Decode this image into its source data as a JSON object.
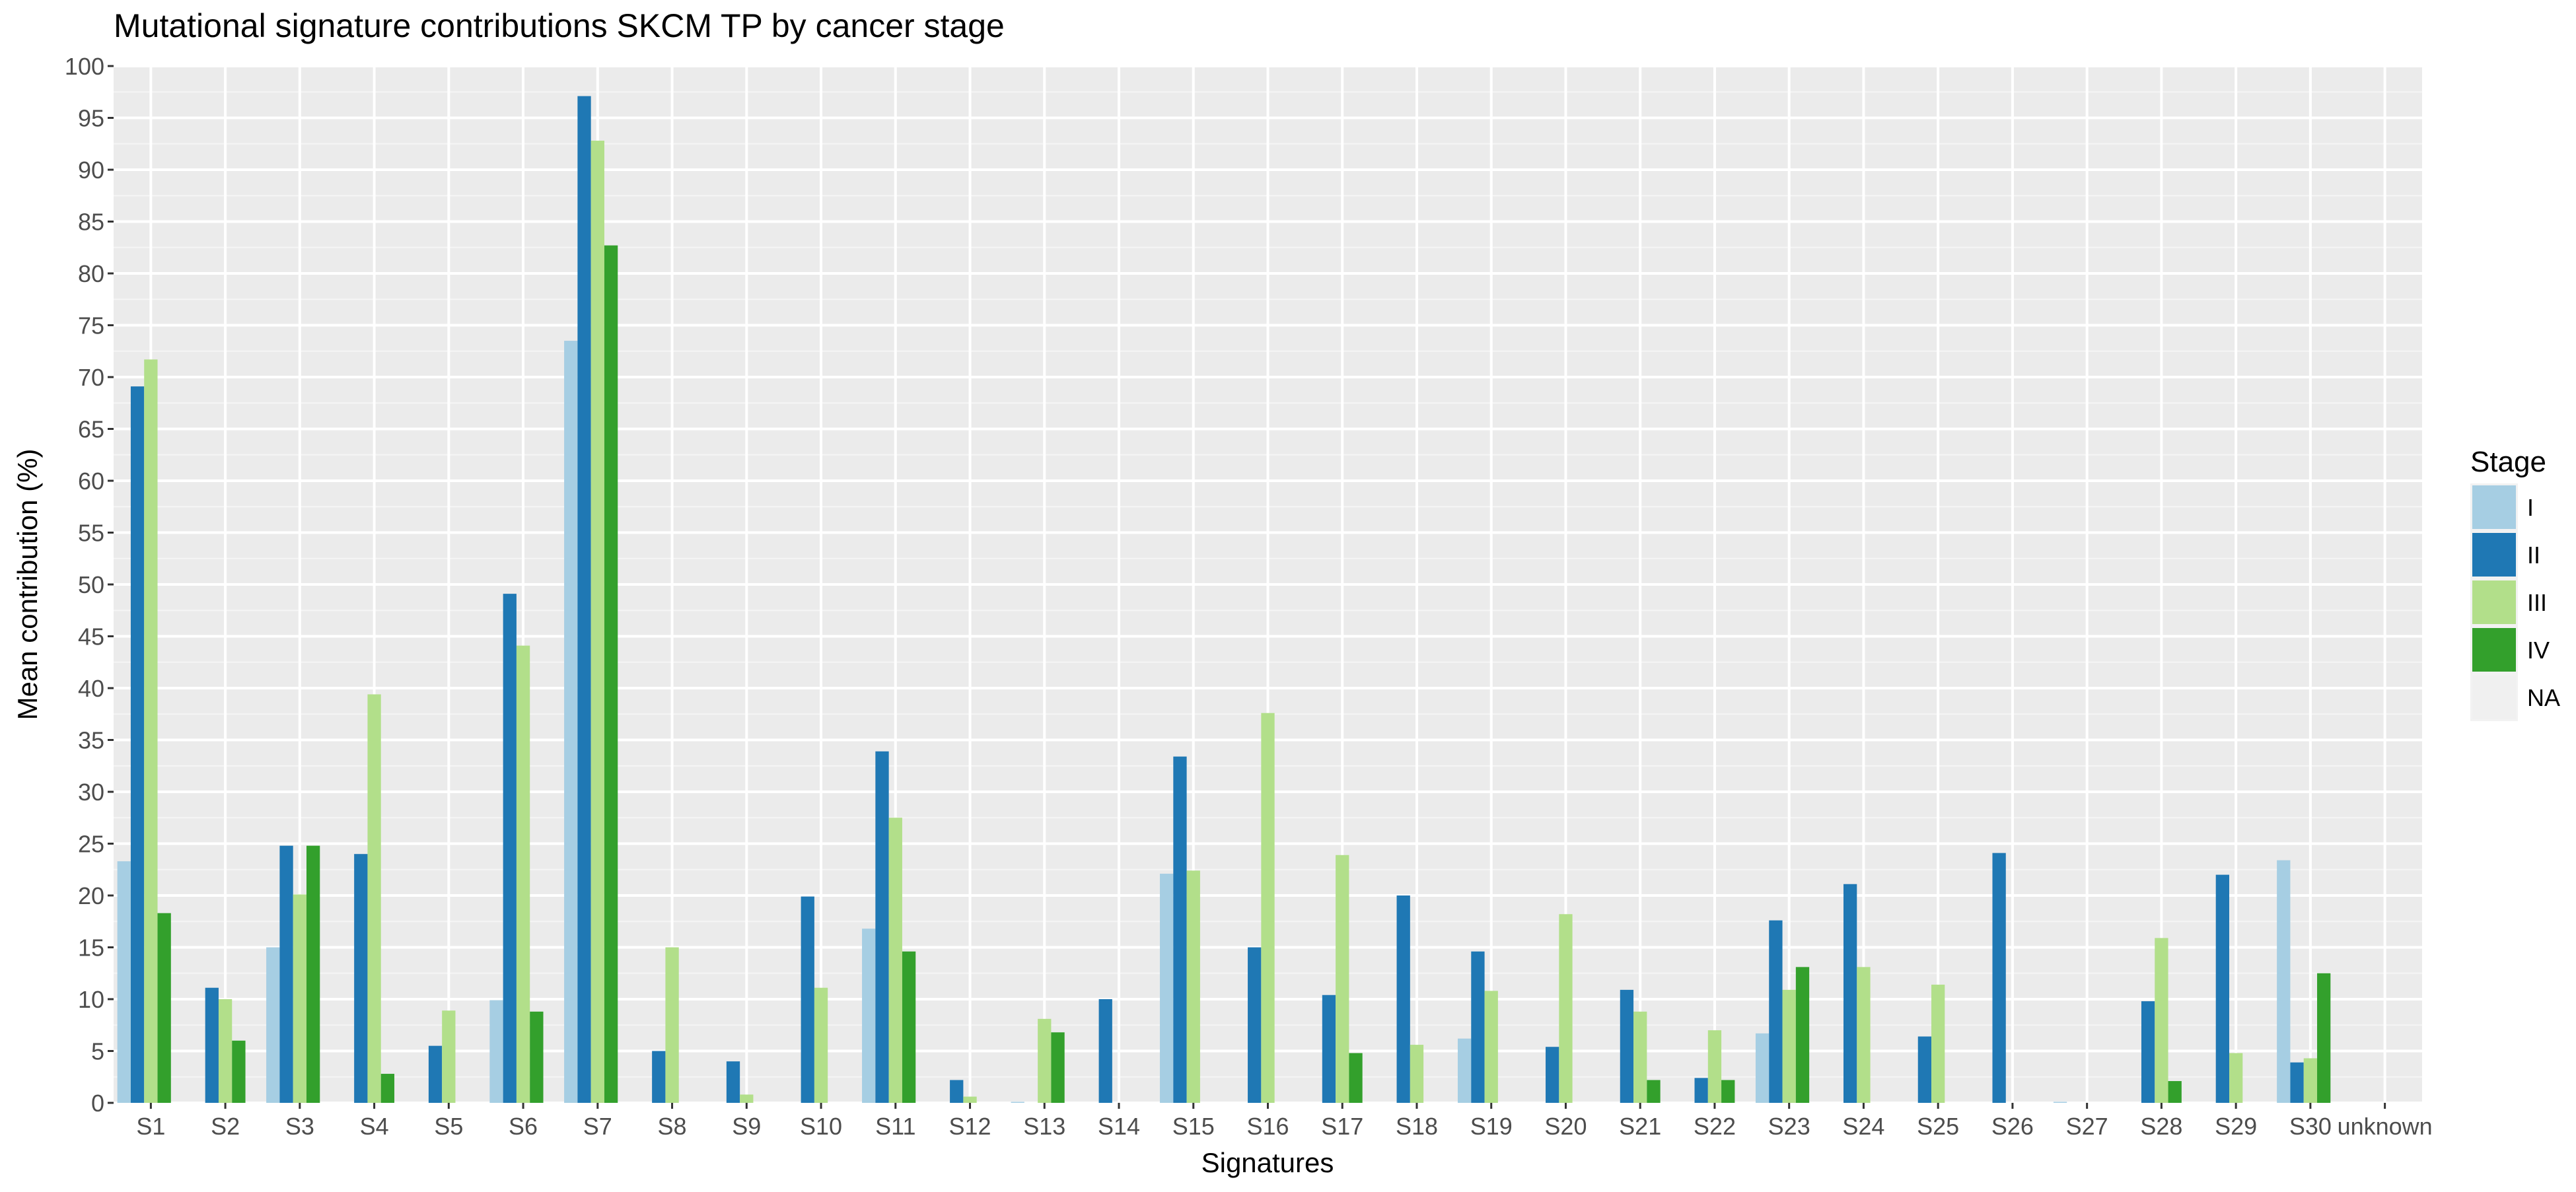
{
  "chart_data": {
    "type": "bar",
    "title": "Mutational signature contributions SKCM TP by cancer stage",
    "xlabel": "Signatures",
    "ylabel": "Mean contribution (%)",
    "ylim": [
      0,
      100
    ],
    "yticks": [
      0,
      5,
      10,
      15,
      20,
      25,
      30,
      35,
      40,
      45,
      50,
      55,
      60,
      65,
      70,
      75,
      80,
      85,
      90,
      95,
      100
    ],
    "grid": true,
    "legend": {
      "title": "Stage",
      "position": "right"
    },
    "categories": [
      "S1",
      "S2",
      "S3",
      "S4",
      "S5",
      "S6",
      "S7",
      "S8",
      "S9",
      "S10",
      "S11",
      "S12",
      "S13",
      "S14",
      "S15",
      "S16",
      "S17",
      "S18",
      "S19",
      "S20",
      "S21",
      "S22",
      "S23",
      "S24",
      "S25",
      "S26",
      "S27",
      "S28",
      "S29",
      "S30",
      "unknown"
    ],
    "series": [
      {
        "name": "I",
        "color": "#A6CEE3",
        "values": [
          23.3,
          0,
          15.0,
          0,
          0,
          9.9,
          73.5,
          0,
          0,
          0,
          16.8,
          0,
          0.1,
          0,
          22.1,
          0,
          0,
          0,
          6.2,
          0,
          0,
          0,
          6.7,
          0,
          0,
          0,
          0.1,
          0,
          0,
          23.4,
          0
        ]
      },
      {
        "name": "II",
        "color": "#1F78B4",
        "values": [
          69.1,
          11.1,
          24.8,
          24.0,
          5.5,
          49.1,
          97.1,
          5.0,
          4.0,
          19.9,
          33.9,
          2.2,
          0,
          10.0,
          33.4,
          15.0,
          10.4,
          20.0,
          14.6,
          5.4,
          10.9,
          2.4,
          17.6,
          21.1,
          6.4,
          24.1,
          0,
          9.8,
          22.0,
          3.9,
          0
        ]
      },
      {
        "name": "III",
        "color": "#B2DF8A",
        "values": [
          71.7,
          10.0,
          20.1,
          39.4,
          8.9,
          44.1,
          92.8,
          15.0,
          0.8,
          11.1,
          27.5,
          0.6,
          8.1,
          0,
          22.4,
          37.6,
          23.9,
          5.6,
          10.8,
          18.2,
          8.8,
          7.0,
          10.9,
          13.1,
          11.4,
          0,
          0,
          15.9,
          4.8,
          4.3,
          0
        ]
      },
      {
        "name": "IV",
        "color": "#33A02C",
        "values": [
          18.3,
          6.0,
          24.8,
          2.8,
          0,
          8.8,
          82.7,
          0,
          0,
          0,
          14.6,
          0,
          6.8,
          0,
          0,
          0,
          4.8,
          0,
          0,
          0,
          2.2,
          2.2,
          13.1,
          0,
          0,
          0,
          0,
          2.1,
          0,
          12.5,
          0
        ]
      },
      {
        "name": "NA",
        "color": "#F0F0F0",
        "values": [
          0,
          0,
          0,
          0,
          0,
          0,
          0,
          0,
          0,
          0,
          0,
          0,
          0,
          0,
          0,
          0,
          0,
          0,
          0,
          0,
          0,
          0,
          0,
          0,
          0,
          0,
          0,
          0,
          0,
          0,
          0
        ]
      }
    ]
  }
}
